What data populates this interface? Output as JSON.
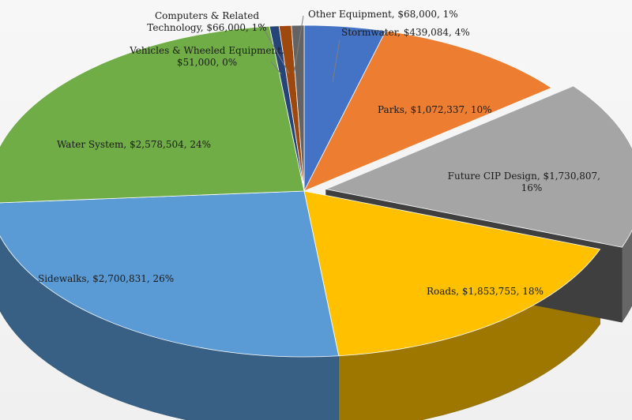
{
  "chart_data": {
    "type": "pie",
    "title": "",
    "style": "3d-exploded",
    "slices": [
      {
        "label": "Stormwater",
        "value": 439084,
        "percent": 4,
        "display": "$439,084",
        "color": "#4472c4"
      },
      {
        "label": "Parks",
        "value": 1072337,
        "percent": 10,
        "display": "$1,072,337",
        "color": "#ed7d31"
      },
      {
        "label": "Future CIP Design",
        "value": 1730807,
        "percent": 16,
        "display": "$1,730,807",
        "color": "#a5a5a5"
      },
      {
        "label": "Roads",
        "value": 1853755,
        "percent": 18,
        "display": "$1,853,755",
        "color": "#ffc000"
      },
      {
        "label": "Sidewalks",
        "value": 2700831,
        "percent": 26,
        "display": "$2,700,831",
        "color": "#5b9bd5"
      },
      {
        "label": "Water System",
        "value": 2578504,
        "percent": 24,
        "display": "$2,578,504",
        "color": "#70ad47"
      },
      {
        "label": "Vehicles & Wheeled Equipment",
        "value": 51000,
        "percent": 0,
        "display": "$51,000",
        "color": "#264478"
      },
      {
        "label": "Computers & Related Technology",
        "value": 66000,
        "percent": 1,
        "display": "$66,000",
        "color": "#9e480e"
      },
      {
        "label": "Other Equipment",
        "value": 68000,
        "percent": 1,
        "display": "$68,000",
        "color": "#636363"
      }
    ]
  }
}
